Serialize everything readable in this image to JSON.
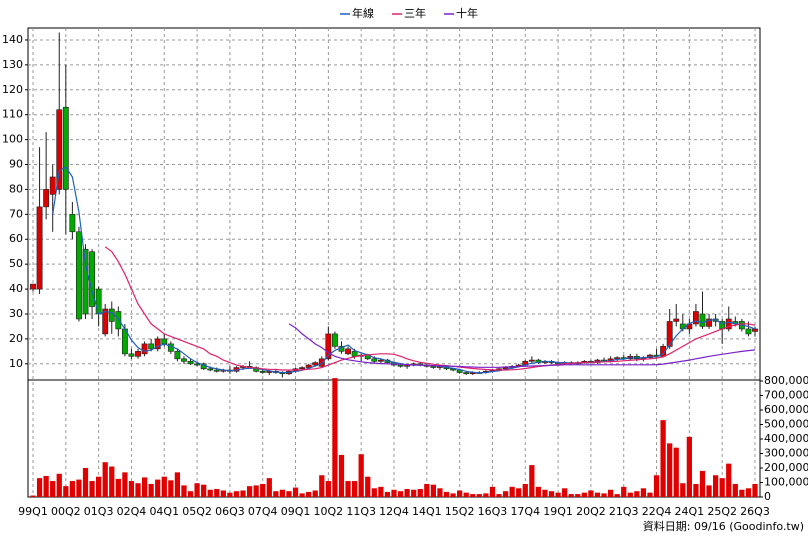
{
  "chart_data": {
    "type": "candlestick",
    "categories": [
      "99Q1",
      null,
      null,
      null,
      null,
      "00Q2",
      null,
      null,
      null,
      null,
      "01Q3",
      null,
      null,
      null,
      null,
      "02Q4",
      null,
      null,
      null,
      null,
      "04Q1",
      null,
      null,
      null,
      null,
      "05Q2",
      null,
      null,
      null,
      null,
      "06Q3",
      null,
      null,
      null,
      null,
      "07Q4",
      null,
      null,
      null,
      null,
      "09Q1",
      null,
      null,
      null,
      null,
      "10Q2",
      null,
      null,
      null,
      null,
      "11Q3",
      null,
      null,
      null,
      null,
      "12Q4",
      null,
      null,
      null,
      null,
      "14Q1",
      null,
      null,
      null,
      null,
      "15Q2",
      null,
      null,
      null,
      null,
      "16Q3",
      null,
      null,
      null,
      null,
      "17Q4",
      null,
      null,
      null,
      null,
      "19Q1",
      null,
      null,
      null,
      null,
      "20Q2",
      null,
      null,
      null,
      null,
      "21Q3",
      null,
      null,
      null,
      null,
      "22Q4",
      null,
      null,
      null,
      null,
      "24Q1",
      null,
      null,
      null,
      null,
      "25Q2",
      null,
      null,
      null,
      null,
      "26Q3"
    ],
    "open": [
      40,
      40,
      73,
      78,
      80,
      113,
      70,
      63,
      56,
      55,
      40,
      22,
      32,
      31,
      24,
      14,
      13,
      14,
      18,
      16,
      20,
      18,
      15,
      12,
      11,
      10,
      10,
      8,
      7.5,
      7,
      7.5,
      7,
      8.5,
      9,
      8.5,
      7,
      6.5,
      7,
      6.5,
      6,
      7,
      8,
      8.5,
      9.5,
      9,
      12,
      22,
      17,
      14,
      15,
      13,
      13.5,
      12,
      11,
      11.5,
      10.5,
      9.5,
      9,
      9.5,
      10,
      9.5,
      9,
      8.5,
      9,
      8,
      7.5,
      6.5,
      6,
      6.5,
      6.5,
      7,
      7.5,
      8,
      8.5,
      9,
      9.5,
      11,
      11.5,
      10.5,
      11,
      10.5,
      10,
      10.5,
      10,
      10.5,
      11,
      10.5,
      11.5,
      11,
      12,
      12.5,
      12,
      13,
      12,
      12.5,
      13.5,
      13,
      17,
      27,
      26,
      24,
      26,
      30,
      25,
      28,
      27,
      24,
      27,
      27,
      24,
      23
    ],
    "high": [
      42,
      97,
      103,
      90,
      143,
      130,
      75,
      65,
      58,
      56,
      41,
      34,
      35,
      33,
      26,
      16,
      16,
      19,
      20,
      21,
      22,
      19,
      16,
      13,
      12,
      11,
      10.5,
      9,
      8.5,
      8,
      9,
      9,
      9.5,
      11,
      9,
      8,
      7.5,
      8,
      7,
      7.5,
      8.5,
      9,
      10,
      11,
      13,
      25,
      23,
      19,
      17,
      16,
      14,
      14,
      13,
      12,
      12,
      11,
      10,
      10,
      10.5,
      10.5,
      10,
      9.5,
      9.5,
      9.5,
      8.5,
      8,
      7,
      7,
      7,
      7.5,
      8,
      8.5,
      9,
      9.5,
      10,
      11.5,
      13,
      12,
      11.5,
      11.5,
      11,
      11,
      11,
      11,
      11.5,
      11.5,
      12,
      12.5,
      13,
      13,
      13.5,
      14,
      14,
      13,
      14,
      16,
      18,
      32,
      34,
      30,
      28,
      34,
      39,
      30,
      30,
      28,
      33,
      29,
      28,
      27,
      25
    ],
    "low": [
      39,
      38,
      68,
      63,
      78,
      62,
      60,
      27,
      28,
      28,
      25,
      21,
      22,
      21,
      13,
      12,
      12,
      13,
      15,
      15,
      17,
      14,
      11,
      10,
      9.5,
      9,
      7.5,
      7,
      6.5,
      6.5,
      6,
      6.5,
      7.5,
      8,
      6.5,
      6,
      5.5,
      6,
      4.5,
      5.5,
      6.5,
      7.5,
      8,
      9,
      8.5,
      11.5,
      16,
      14,
      13.5,
      12,
      11,
      11.5,
      10,
      10,
      10,
      9,
      8.5,
      8,
      9,
      9,
      8.5,
      8,
      7.5,
      7.5,
      7,
      6,
      5.5,
      5.5,
      6,
      6,
      6.5,
      7,
      7.5,
      8,
      8.5,
      9,
      10,
      10,
      10,
      10,
      9.5,
      9.5,
      9.5,
      9.5,
      10,
      10,
      10,
      10.5,
      10.5,
      11,
      11.5,
      11.5,
      11,
      11,
      12,
      12.5,
      12.5,
      16,
      25,
      23,
      22,
      25,
      24,
      24,
      25,
      18,
      23,
      25,
      23,
      21,
      21
    ],
    "close": [
      42,
      73,
      80,
      85,
      112,
      80,
      63,
      28,
      30,
      33,
      30,
      32,
      27,
      24,
      14,
      13,
      15,
      18,
      16,
      20,
      18,
      15,
      12,
      11,
      10,
      9.5,
      8,
      7.5,
      7,
      7.5,
      7,
      8.5,
      9,
      8.5,
      7,
      6.5,
      7,
      6.5,
      6,
      7,
      8,
      8.5,
      9.5,
      10.5,
      12,
      22,
      17,
      15,
      16,
      13,
      13.5,
      12,
      11,
      11.5,
      10.5,
      9.5,
      9,
      9.5,
      10,
      9.5,
      9,
      8.5,
      9,
      8,
      7.5,
      6.5,
      6,
      6.5,
      6.5,
      7,
      7.5,
      8,
      8.5,
      9,
      9.5,
      11,
      11.5,
      10.5,
      11,
      10.5,
      10,
      10.5,
      10,
      10.5,
      11,
      10.5,
      11.5,
      11,
      12,
      12.5,
      12,
      13,
      12,
      12.5,
      13.5,
      13,
      17,
      27,
      28,
      24,
      26,
      31,
      25,
      28,
      27,
      24,
      28,
      26,
      24,
      22,
      24
    ],
    "up_color": "#dd0000",
    "down_color": "#00aa00",
    "series": [
      {
        "name": "年線",
        "color": "#1f5fbf",
        "values": [
          null,
          null,
          null,
          70,
          87.5,
          89,
          85,
          71,
          50,
          39,
          30,
          31,
          30.5,
          28,
          24,
          19.5,
          16.5,
          15,
          15.5,
          17,
          18,
          17,
          16,
          14,
          12,
          10.5,
          9.5,
          8.5,
          8,
          7.5,
          7.2,
          7.5,
          8,
          8.2,
          8.2,
          7.7,
          7.2,
          6.7,
          6.5,
          6.6,
          6.9,
          7.4,
          8.2,
          9.1,
          10.1,
          13.5,
          15.4,
          16.5,
          17.5,
          15.3,
          14.4,
          13.6,
          12.4,
          12,
          11.2,
          10.6,
          10.1,
          9.6,
          9.5,
          9.5,
          9.5,
          9.2,
          9,
          8.6,
          8.2,
          7.7,
          7,
          6.6,
          6.4,
          6.5,
          6.9,
          7.2,
          7.8,
          8.2,
          8.8,
          9.6,
          10.2,
          10.6,
          11,
          10.9,
          10.5,
          10.5,
          10.2,
          10.2,
          10.5,
          10.5,
          10.9,
          11,
          11.2,
          11.8,
          11.9,
          12.4,
          12.4,
          12.4,
          12.8,
          12.8,
          14,
          17.6,
          21.2,
          24,
          26.2,
          27.2,
          26.5,
          27.5,
          27.7,
          26,
          26.7,
          26.2,
          25.5,
          25,
          24
        ]
      },
      {
        "name": "三年",
        "color": "#e0206a",
        "values": [
          null,
          null,
          null,
          null,
          null,
          null,
          null,
          null,
          null,
          null,
          null,
          57,
          55,
          51,
          46,
          40,
          34,
          30,
          26,
          24,
          22,
          21,
          20,
          19,
          18,
          17,
          16,
          14,
          13,
          11.5,
          10.5,
          9.5,
          9,
          8.5,
          8.3,
          8,
          7.8,
          7.7,
          7.5,
          7.5,
          7.5,
          7.6,
          7.8,
          8,
          8.5,
          9.5,
          10.5,
          11.5,
          12.2,
          12.8,
          13.3,
          13.6,
          13.8,
          14,
          14,
          13.8,
          13,
          12,
          11.2,
          10.6,
          10.2,
          9.8,
          9.5,
          9.3,
          9,
          8.7,
          8.4,
          8.1,
          7.9,
          7.7,
          7.6,
          7.5,
          7.5,
          7.6,
          7.8,
          8.1,
          8.5,
          8.9,
          9.2,
          9.5,
          9.8,
          10,
          10.2,
          10.4,
          10.5,
          10.6,
          10.7,
          10.8,
          10.9,
          11,
          11.2,
          11.4,
          11.6,
          11.8,
          12,
          12.3,
          12.8,
          14,
          15.5,
          17,
          18.5,
          20,
          21,
          22,
          23,
          24,
          25,
          25.5,
          26,
          26,
          25.5
        ]
      },
      {
        "name": "十年",
        "color": "#7a20c8",
        "values": [
          null,
          null,
          null,
          null,
          null,
          null,
          null,
          null,
          null,
          null,
          null,
          null,
          null,
          null,
          null,
          null,
          null,
          null,
          null,
          null,
          null,
          null,
          null,
          null,
          null,
          null,
          null,
          null,
          null,
          null,
          null,
          null,
          null,
          null,
          null,
          null,
          null,
          null,
          null,
          26,
          24.5,
          22,
          20,
          18,
          16.5,
          14.5,
          13,
          12.2,
          11.6,
          11.2,
          10.8,
          10.5,
          10.3,
          10.1,
          10,
          9.9,
          9.8,
          9.7,
          9.6,
          9.5,
          9.4,
          9.3,
          9.2,
          9.1,
          9,
          8.9,
          8.8,
          8.7,
          8.6,
          8.6,
          8.6,
          8.6,
          8.7,
          8.8,
          8.9,
          9,
          9.1,
          9.2,
          9.3,
          9.4,
          9.5,
          9.6,
          9.6,
          9.6,
          9.6,
          9.6,
          9.6,
          9.6,
          9.6,
          9.6,
          9.6,
          9.6,
          9.6,
          9.6,
          9.6,
          9.7,
          9.9,
          10.3,
          10.7,
          11.1,
          11.5,
          12,
          12.5,
          13,
          13.4,
          13.8,
          14.2,
          14.6,
          15,
          15.3,
          15.6
        ]
      }
    ],
    "ylim": [
      3.5,
      144.8
    ],
    "yticks": [
      10,
      20,
      30,
      40,
      50,
      60,
      70,
      80,
      90,
      100,
      110,
      120,
      130,
      140
    ],
    "volume": [
      10000,
      130000,
      145000,
      110000,
      160000,
      75000,
      110000,
      120000,
      200000,
      110000,
      140000,
      240000,
      210000,
      125000,
      170000,
      110000,
      95000,
      135000,
      90000,
      120000,
      140000,
      115000,
      170000,
      80000,
      40000,
      95000,
      85000,
      50000,
      55000,
      45000,
      30000,
      40000,
      45000,
      75000,
      80000,
      90000,
      130000,
      40000,
      50000,
      40000,
      65000,
      25000,
      35000,
      45000,
      150000,
      110000,
      820000,
      290000,
      110000,
      110000,
      295000,
      140000,
      60000,
      70000,
      35000,
      50000,
      40000,
      55000,
      50000,
      55000,
      90000,
      85000,
      60000,
      35000,
      25000,
      45000,
      30000,
      20000,
      20000,
      25000,
      70000,
      20000,
      40000,
      70000,
      60000,
      90000,
      220000,
      70000,
      50000,
      40000,
      30000,
      60000,
      20000,
      20000,
      30000,
      45000,
      30000,
      25000,
      50000,
      20000,
      70000,
      30000,
      40000,
      60000,
      30000,
      150000,
      530000,
      370000,
      340000,
      95000,
      415000,
      90000,
      180000,
      80000,
      150000,
      130000,
      230000,
      90000,
      50000,
      60000,
      90000
    ],
    "volume_color": "#e00000",
    "y2lim": [
      0,
      800000
    ],
    "y2ticks": [
      0,
      {
        "value": 100000,
        "label": "100,000"
      },
      {
        "value": 200000,
        "label": "200,000"
      },
      {
        "value": 300000,
        "label": "300,000"
      },
      {
        "value": 400000,
        "label": "400,000"
      },
      {
        "value": 500000,
        "label": "500,000"
      },
      {
        "value": 600000,
        "label": "600,000"
      },
      {
        "value": 700000,
        "label": "700,000"
      },
      {
        "value": 800000,
        "label": "800,000"
      }
    ],
    "grid": true,
    "source_note": "資料日期: 09/16 (Goodinfo.tw)"
  }
}
